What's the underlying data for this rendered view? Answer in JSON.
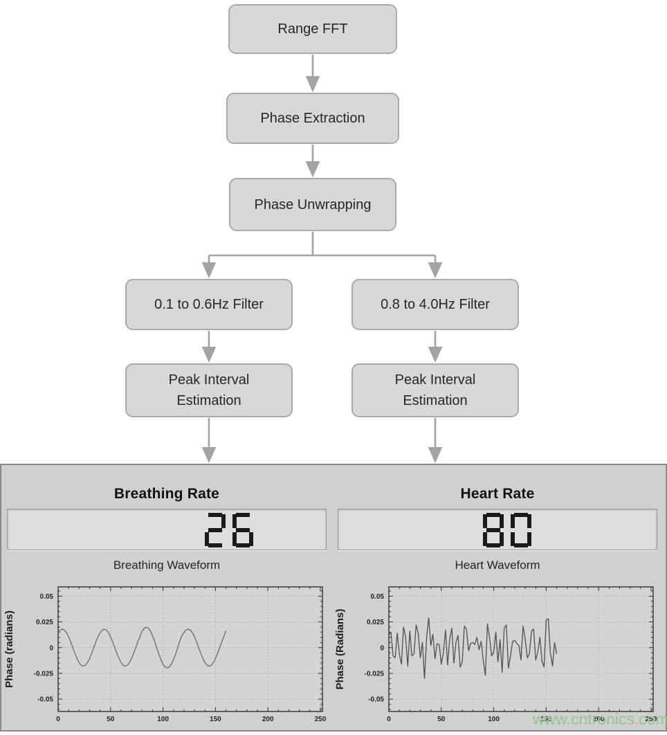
{
  "flowchart": {
    "nodes": [
      {
        "id": "range-fft",
        "label": "Range FFT"
      },
      {
        "id": "phase-extraction",
        "label": "Phase Extraction"
      },
      {
        "id": "phase-unwrapping",
        "label": "Phase Unwrapping"
      },
      {
        "id": "breath-filter",
        "label": "0.1 to 0.6Hz Filter"
      },
      {
        "id": "heart-filter",
        "label": "0.8 to 4.0Hz Filter"
      },
      {
        "id": "breath-peak",
        "label": "Peak Interval Estimation"
      },
      {
        "id": "heart-peak",
        "label": "Peak Interval Estimation"
      }
    ],
    "arrow_color": "#a3a3a3",
    "box_fill": "#d8d8d8",
    "box_border": "#a9a9a9"
  },
  "panel": {
    "breathing": {
      "title": "Breathing Rate",
      "value": "26",
      "waveform_title": "Breathing Waveform"
    },
    "heart": {
      "title": "Heart Rate",
      "value": "80",
      "waveform_title": "Heart Waveform"
    },
    "display_digit_color": "#1a1a1a",
    "background": "#d0d0d0"
  },
  "watermark": {
    "text": "www.cntronics.com",
    "color": "#92c692"
  },
  "chart_data": [
    {
      "type": "line",
      "title": "Breathing Waveform",
      "xlabel": "",
      "ylabel": "Phase (radians)",
      "xlim": [
        0,
        252
      ],
      "ylim": [
        -0.062,
        0.059
      ],
      "xticks": [
        0,
        50,
        100,
        150,
        200,
        250
      ],
      "yticks": [
        0.05,
        0.025,
        0,
        -0.025,
        -0.05
      ],
      "ytick_labels": [
        "0.05",
        "0.025",
        "0",
        "-0.025",
        "-0.05"
      ],
      "grid": true,
      "legend": "none",
      "line_color": "#6a6a6a",
      "x": [
        0,
        2,
        4,
        6,
        8,
        10,
        12,
        14,
        16,
        18,
        20,
        22,
        24,
        26,
        28,
        30,
        32,
        34,
        36,
        38,
        40,
        42,
        44,
        46,
        48,
        50,
        52,
        54,
        56,
        58,
        60,
        62,
        64,
        66,
        68,
        70,
        72,
        74,
        76,
        78,
        80,
        82,
        84,
        86,
        88,
        90,
        92,
        94,
        96,
        98,
        100,
        102,
        104,
        106,
        108,
        110,
        112,
        114,
        116,
        118,
        120,
        122,
        124,
        126,
        128,
        130,
        132,
        134,
        136,
        138,
        140,
        142,
        144,
        146,
        148,
        150,
        152,
        154,
        156,
        158,
        160
      ],
      "y": [
        0.0146,
        0.0171,
        0.018,
        0.0171,
        0.0146,
        0.0106,
        0.0056,
        0.0,
        -0.0056,
        -0.0106,
        -0.0146,
        -0.0171,
        -0.018,
        -0.0171,
        -0.0146,
        -0.0106,
        -0.0056,
        0.0,
        0.0056,
        0.0106,
        0.0146,
        0.0171,
        0.018,
        0.0171,
        0.0146,
        0.0106,
        0.0056,
        0.0,
        -0.0056,
        -0.0106,
        -0.0146,
        -0.0171,
        -0.018,
        -0.0171,
        -0.0146,
        -0.0106,
        -0.0056,
        0.0,
        0.0056,
        0.0106,
        0.0161,
        0.0188,
        0.0198,
        0.0188,
        0.0161,
        0.0117,
        0.0062,
        0.0,
        -0.0062,
        -0.0117,
        -0.0161,
        -0.0188,
        -0.0198,
        -0.0188,
        -0.0161,
        -0.0117,
        -0.0062,
        0.0,
        0.0062,
        0.0117,
        0.0146,
        0.0171,
        0.018,
        0.0171,
        0.0146,
        0.0106,
        0.0056,
        0.0,
        -0.0056,
        -0.0106,
        -0.0146,
        -0.0171,
        -0.018,
        -0.0171,
        -0.0146,
        -0.0106,
        -0.0056,
        0.0,
        0.0056,
        0.0106,
        0.0165
      ]
    },
    {
      "type": "line",
      "title": "Heart Waveform",
      "xlabel": "",
      "ylabel": "Phase (Radians)",
      "xlim": [
        0,
        252
      ],
      "ylim": [
        -0.062,
        0.059
      ],
      "xticks": [
        0,
        50,
        100,
        150,
        200,
        250
      ],
      "yticks": [
        0.05,
        0.025,
        0,
        -0.025,
        -0.05
      ],
      "ytick_labels": [
        "0.05",
        "0.025",
        "0",
        "-0.025",
        "-0.05"
      ],
      "grid": true,
      "legend": "none",
      "line_color": "#4f4f4f",
      "x": [
        0,
        2,
        4,
        6,
        8,
        10,
        12,
        14,
        16,
        18,
        20,
        22,
        24,
        26,
        28,
        30,
        32,
        34,
        36,
        38,
        40,
        42,
        44,
        46,
        48,
        50,
        52,
        54,
        56,
        58,
        60,
        62,
        64,
        66,
        68,
        70,
        72,
        74,
        76,
        78,
        80,
        82,
        84,
        86,
        88,
        90,
        92,
        94,
        96,
        98,
        100,
        102,
        104,
        106,
        108,
        110,
        112,
        114,
        116,
        118,
        120,
        122,
        124,
        126,
        128,
        130,
        132,
        134,
        136,
        138,
        140,
        142,
        144,
        146,
        148,
        150,
        152,
        154,
        156,
        158,
        160
      ],
      "y": [
        0.012,
        0.015,
        -0.008,
        -0.01,
        0.014,
        -0.006,
        -0.016,
        0.02,
        0.01,
        -0.018,
        0.016,
        -0.008,
        -0.006,
        0.022,
        0.014,
        -0.01,
        0.005,
        -0.03,
        0.01,
        0.029,
        0.002,
        0.013,
        -0.011,
        0.004,
        0.003,
        -0.016,
        -0.005,
        0.017,
        -0.017,
        0.008,
        0.019,
        -0.015,
        0.005,
        0.012,
        -0.019,
        -0.014,
        0.021,
        0.018,
        -0.003,
        0.004,
        0.005,
        0.003,
        0.01,
        -0.002,
        0.006,
        -0.012,
        -0.027,
        0.023,
        0.01,
        -0.008,
        -0.004,
        0.015,
        -0.014,
        0.008,
        -0.024,
        0.019,
        0.022,
        -0.02,
        -0.008,
        0.006,
        0.007,
        0.004,
        0.002,
        -0.012,
        0.021,
        0.008,
        -0.01,
        -0.006,
        0.016,
        0.018,
        -0.012,
        -0.004,
        0.01,
        -0.013,
        -0.019,
        0.027,
        0.028,
        -0.005,
        -0.018,
        0.005,
        -0.006
      ]
    }
  ]
}
